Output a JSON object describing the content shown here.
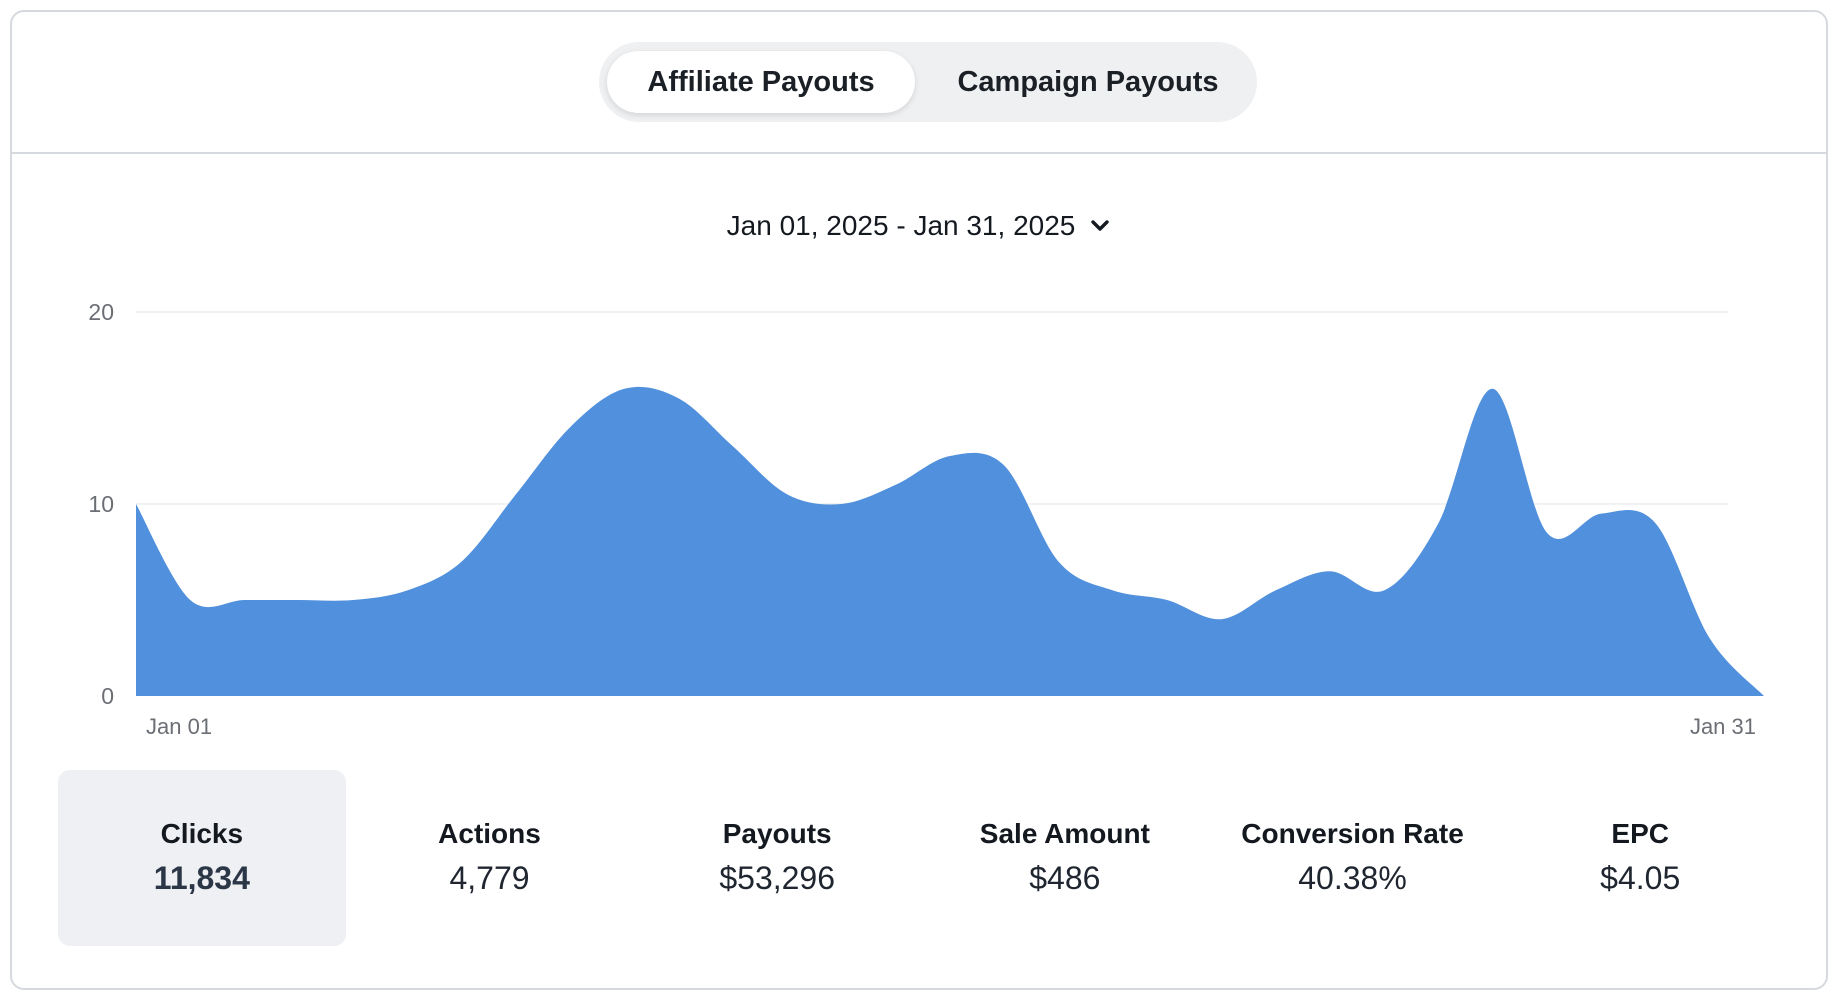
{
  "tabs": {
    "items": [
      {
        "label": "Affiliate Payouts",
        "active": true
      },
      {
        "label": "Campaign Payouts",
        "active": false
      }
    ]
  },
  "date_range": {
    "label": "Jan 01, 2025 - Jan 31, 2025",
    "icon": "chevron-down-icon"
  },
  "colors": {
    "area_fill": "#5090dc",
    "grid": "#eceef0",
    "axis_text": "#6b6f75",
    "selected_stat_bg": "#eef0f3"
  },
  "chart_data": {
    "type": "area",
    "title": "",
    "xlabel": "",
    "ylabel": "",
    "ylim": [
      0,
      20
    ],
    "yticks": [
      0,
      10,
      20
    ],
    "x_tick_labels": [
      "Jan 01",
      "Jan 31"
    ],
    "grid": true,
    "x": [
      "Jan 01",
      "Jan 02",
      "Jan 03",
      "Jan 04",
      "Jan 05",
      "Jan 06",
      "Jan 07",
      "Jan 08",
      "Jan 09",
      "Jan 10",
      "Jan 11",
      "Jan 12",
      "Jan 13",
      "Jan 14",
      "Jan 15",
      "Jan 16",
      "Jan 17",
      "Jan 18",
      "Jan 19",
      "Jan 20",
      "Jan 21",
      "Jan 22",
      "Jan 23",
      "Jan 24",
      "Jan 25",
      "Jan 26",
      "Jan 27",
      "Jan 28",
      "Jan 29",
      "Jan 30",
      "Jan 31"
    ],
    "series": [
      {
        "values": [
          10,
          5,
          5,
          5,
          5,
          5.5,
          7,
          10.5,
          14,
          16,
          15.5,
          13,
          10.5,
          10,
          11,
          12.5,
          12,
          7,
          5.5,
          5,
          4,
          5.5,
          6.5,
          5.5,
          9,
          16,
          8.5,
          9.5,
          9,
          3,
          0
        ]
      }
    ]
  },
  "stats": [
    {
      "label": "Clicks",
      "value": "11,834",
      "selected": true
    },
    {
      "label": "Actions",
      "value": "4,779",
      "selected": false
    },
    {
      "label": "Payouts",
      "value": "$53,296",
      "selected": false
    },
    {
      "label": "Sale Amount",
      "value": "$486",
      "selected": false
    },
    {
      "label": "Conversion Rate",
      "value": "40.38%",
      "selected": false
    },
    {
      "label": "EPC",
      "value": "$4.05",
      "selected": false
    }
  ]
}
